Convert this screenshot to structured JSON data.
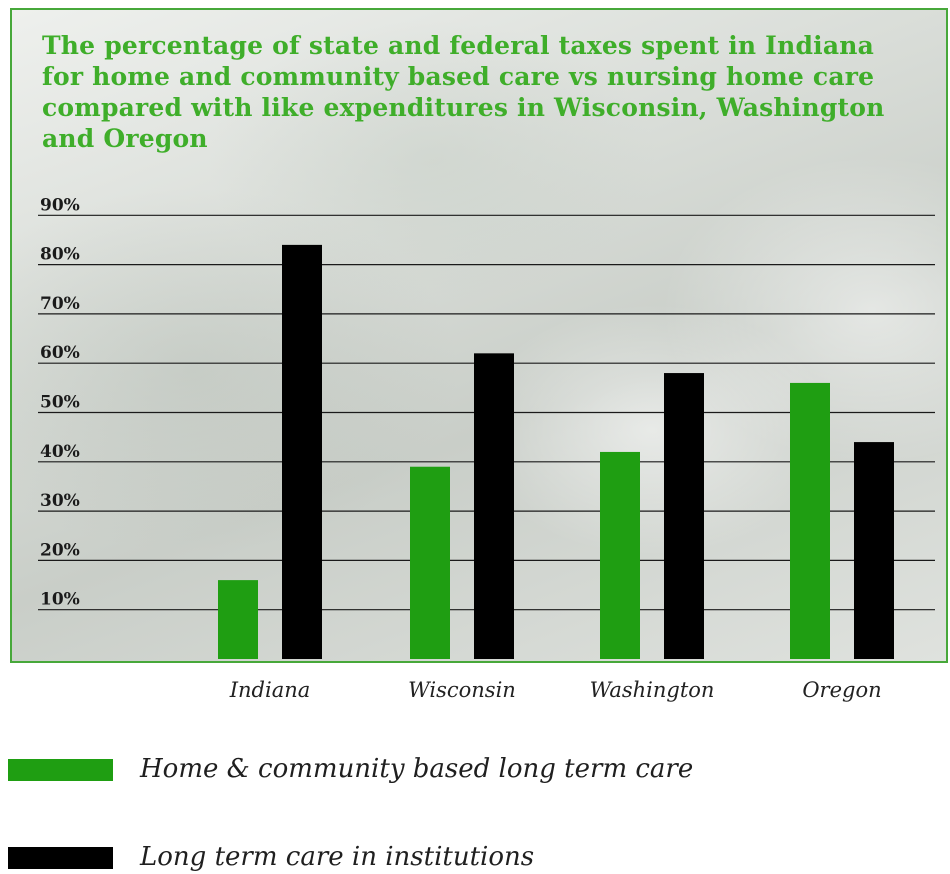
{
  "chart_data": {
    "type": "bar",
    "title": "The percentage of state and federal taxes spent in Indiana for home and community based care vs nursing home care compared with like expenditures in Wisconsin, Washington and Oregon",
    "categories": [
      "Indiana",
      "Wisconsin",
      "Washington",
      "Oregon"
    ],
    "series": [
      {
        "name": "Home & community based long term care",
        "color": "#1f9e12",
        "values": [
          16,
          39,
          42,
          56
        ]
      },
      {
        "name": "Long term care in institutions",
        "color": "#000000",
        "values": [
          84,
          62,
          58,
          44
        ]
      }
    ],
    "yticks": [
      "10%",
      "20%",
      "30%",
      "40%",
      "50%",
      "60%",
      "70%",
      "80%",
      "90%"
    ],
    "ytick_values": [
      10,
      20,
      30,
      40,
      50,
      60,
      70,
      80,
      90
    ],
    "ylim": [
      0,
      90
    ],
    "grid": true,
    "legend_position": "bottom-left",
    "xlabel": "",
    "ylabel": ""
  },
  "colors": {
    "title": "#3fae2a",
    "frame": "#47a83a",
    "gridline": "#1a1a1a"
  }
}
